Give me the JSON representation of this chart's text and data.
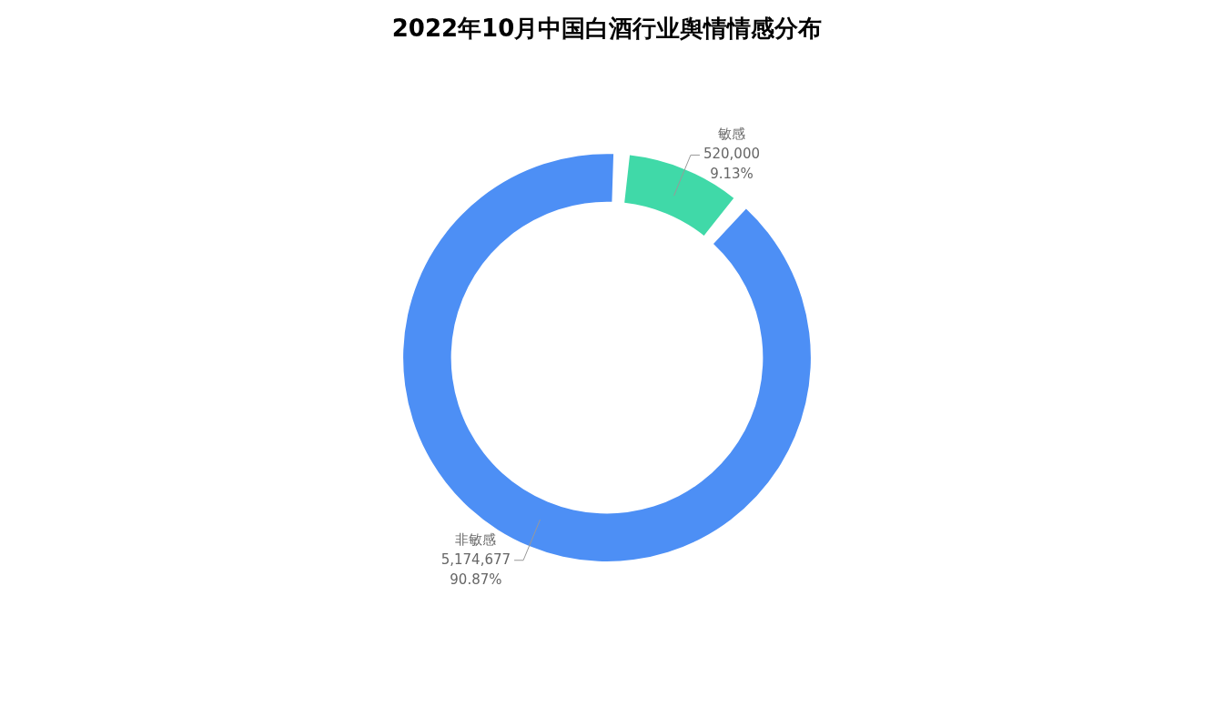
{
  "chart_data": {
    "type": "donut",
    "title": "2022年10月中国白酒行业舆情情感分布",
    "categories": [
      "敏感",
      "非敏感"
    ],
    "values": [
      520000,
      5174677
    ],
    "colors": [
      "#40d9a8",
      "#4d8ff5"
    ],
    "value_labels": [
      "520,000\n9.13%",
      "5,174,677\n90.87%"
    ],
    "legend": false
  }
}
